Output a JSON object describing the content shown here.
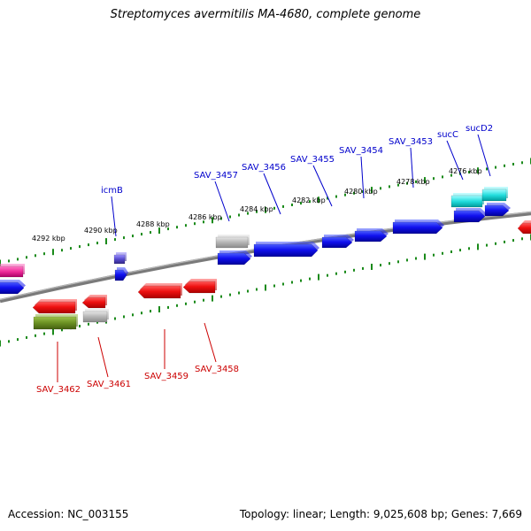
{
  "title": "Streptomyces avermitilis MA-4680, complete genome",
  "footer": {
    "accession": "Accession: NC_003155",
    "summary": "Topology: linear; Length: 9,025,608 bp; Genes: 7,669"
  },
  "colors": {
    "forward_label": "#0000cc",
    "reverse_label": "#cc0000",
    "tick": "#1a8a1a",
    "backbone": "#7a7a7a"
  },
  "scale_labels": [
    {
      "name": "4292 kbp"
    },
    {
      "name": "4290 kbp"
    },
    {
      "name": "4288 kbp"
    },
    {
      "name": "4286 kbp"
    },
    {
      "name": "4284 kbp"
    },
    {
      "name": "4282 kbp"
    },
    {
      "name": "4280 kbp"
    },
    {
      "name": "4278 kbp"
    },
    {
      "name": "4276 kbp"
    }
  ],
  "forward_genes": [
    {
      "name": "icmB"
    },
    {
      "name": "SAV_3457"
    },
    {
      "name": "SAV_3456"
    },
    {
      "name": "SAV_3455"
    },
    {
      "name": "SAV_3454"
    },
    {
      "name": "SAV_3453"
    },
    {
      "name": "sucC"
    },
    {
      "name": "sucD2"
    }
  ],
  "reverse_genes": [
    {
      "name": "SAV_3462"
    },
    {
      "name": "SAV_3461"
    },
    {
      "name": "SAV_3459"
    },
    {
      "name": "SAV_3458"
    }
  ]
}
